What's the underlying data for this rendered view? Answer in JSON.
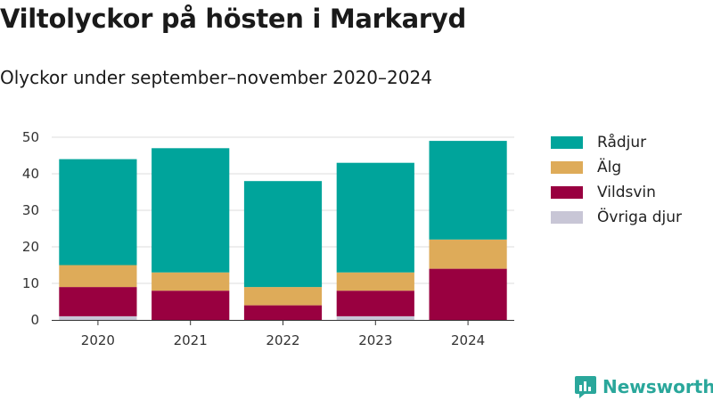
{
  "header": {
    "title": "Viltolyckor på hösten i Markaryd",
    "subtitle": "Olyckor under september–november 2020–2024"
  },
  "brand": {
    "name": "Newsworthy",
    "icon": "newsworthy-logo-icon",
    "color": "#2aa79b"
  },
  "chart_data": {
    "type": "bar",
    "stacked": true,
    "categories": [
      "2020",
      "2021",
      "2022",
      "2023",
      "2024"
    ],
    "series": [
      {
        "name": "Övriga djur",
        "color": "#c8c6d6",
        "values": [
          1,
          0,
          0,
          1,
          0
        ]
      },
      {
        "name": "Vildsvin",
        "color": "#990040",
        "values": [
          8,
          8,
          4,
          7,
          14
        ]
      },
      {
        "name": "Älg",
        "color": "#deab59",
        "values": [
          6,
          5,
          5,
          5,
          8
        ]
      },
      {
        "name": "Rådjur",
        "color": "#00a49b",
        "values": [
          29,
          34,
          29,
          30,
          27
        ]
      }
    ],
    "legend_order": [
      "Rådjur",
      "Älg",
      "Vildsvin",
      "Övriga djur"
    ],
    "ylim": [
      0,
      50
    ],
    "yticks": [
      0,
      10,
      20,
      30,
      40,
      50
    ],
    "grid": true,
    "legend_position": "right"
  }
}
